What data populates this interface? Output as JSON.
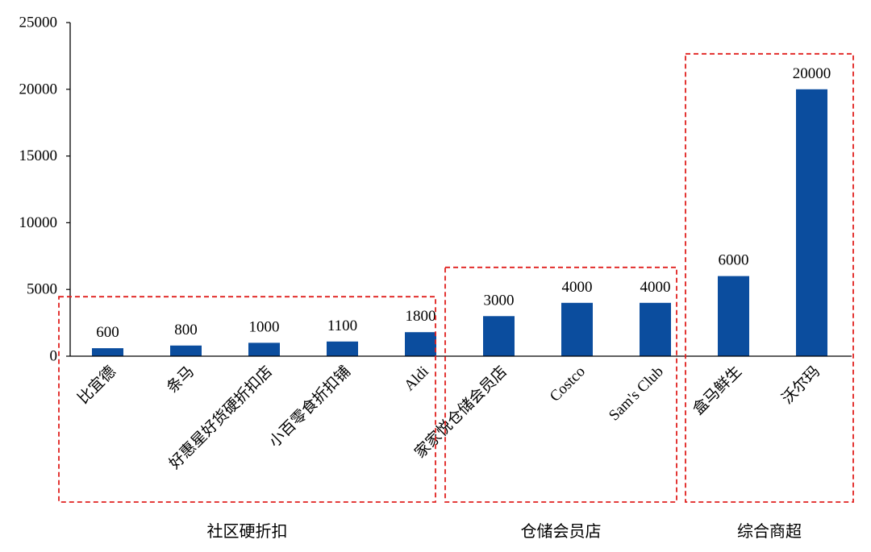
{
  "chart_data": {
    "type": "bar",
    "categories": [
      "比宜德",
      "条马",
      "好惠星好货硬折扣店",
      "小百零食折扣铺",
      "Aldi",
      "家家悦仓储会员店",
      "Costco",
      "Sam's Club",
      "盒马鲜生",
      "沃尔玛"
    ],
    "values": [
      600,
      800,
      1000,
      1100,
      1800,
      3000,
      4000,
      4000,
      6000,
      20000
    ],
    "ylim": [
      0,
      25000
    ],
    "yticks": [
      0,
      5000,
      10000,
      15000,
      20000,
      25000
    ],
    "grid": false,
    "groups": [
      {
        "label": "社区硬折扣",
        "first": 0,
        "last": 4
      },
      {
        "label": "仓储会员店",
        "first": 5,
        "last": 7
      },
      {
        "label": "综合商超",
        "first": 8,
        "last": 9
      }
    ]
  },
  "colors": {
    "bar": "#0B4D9E",
    "group_box": "#E0201E",
    "axis": "#000000",
    "background": "#FFFFFF"
  }
}
